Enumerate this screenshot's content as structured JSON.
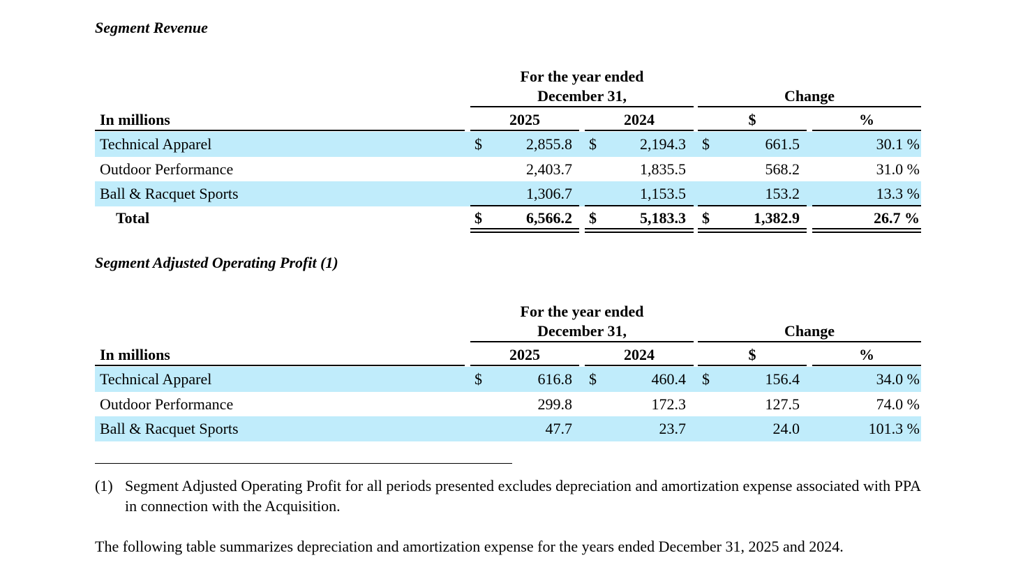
{
  "tables": [
    {
      "title": "Segment Revenue",
      "period_header_line1": "For the year ended",
      "period_header_line2": "December 31,",
      "change_header": "Change",
      "label_header": "In millions",
      "col_2025": "2025",
      "col_2024": "2024",
      "col_change_dollar": "$",
      "col_change_pct": "%",
      "rows": [
        {
          "label": "Technical Apparel",
          "cur_a": "$",
          "v2025": "2,855.8",
          "cur_b": "$",
          "v2024": "2,194.3",
          "cur_c": "$",
          "change": "661.5",
          "pct": "30.1 %"
        },
        {
          "label": "Outdoor Performance",
          "cur_a": "",
          "v2025": "2,403.7",
          "cur_b": "",
          "v2024": "1,835.5",
          "cur_c": "",
          "change": "568.2",
          "pct": "31.0 %"
        },
        {
          "label": "Ball & Racquet Sports",
          "cur_a": "",
          "v2025": "1,306.7",
          "cur_b": "",
          "v2024": "1,153.5",
          "cur_c": "",
          "change": "153.2",
          "pct": "13.3 %"
        },
        {
          "label": "Total",
          "cur_a": "$",
          "v2025": "6,566.2",
          "cur_b": "$",
          "v2024": "5,183.3",
          "cur_c": "$",
          "change": "1,382.9",
          "pct": "26.7 %"
        }
      ]
    },
    {
      "title": "Segment Adjusted Operating Profit (1)",
      "period_header_line1": "For the year ended",
      "period_header_line2": "December 31,",
      "change_header": "Change",
      "label_header": "In millions",
      "col_2025": "2025",
      "col_2024": "2024",
      "col_change_dollar": "$",
      "col_change_pct": "%",
      "rows": [
        {
          "label": "Technical Apparel",
          "cur_a": "$",
          "v2025": "616.8",
          "cur_b": "$",
          "v2024": "460.4",
          "cur_c": "$",
          "change": "156.4",
          "pct": "34.0 %"
        },
        {
          "label": "Outdoor Performance",
          "cur_a": "",
          "v2025": "299.8",
          "cur_b": "",
          "v2024": "172.3",
          "cur_c": "",
          "change": "127.5",
          "pct": "74.0 %"
        },
        {
          "label": "Ball & Racquet Sports",
          "cur_a": "",
          "v2025": "47.7",
          "cur_b": "",
          "v2024": "23.7",
          "cur_c": "",
          "change": "24.0",
          "pct": "101.3 %"
        }
      ]
    }
  ],
  "footnote": {
    "mark": "(1)",
    "text": "Segment Adjusted Operating Profit for all periods presented excludes depreciation and amortization expense associated with PPA in connection with the Acquisition."
  },
  "paragraph": "The following table summarizes depreciation and amortization expense for the years ended December 31, 2025 and 2024.",
  "colors": {
    "row_shade": "#c0ecfb",
    "text": "#000000"
  }
}
